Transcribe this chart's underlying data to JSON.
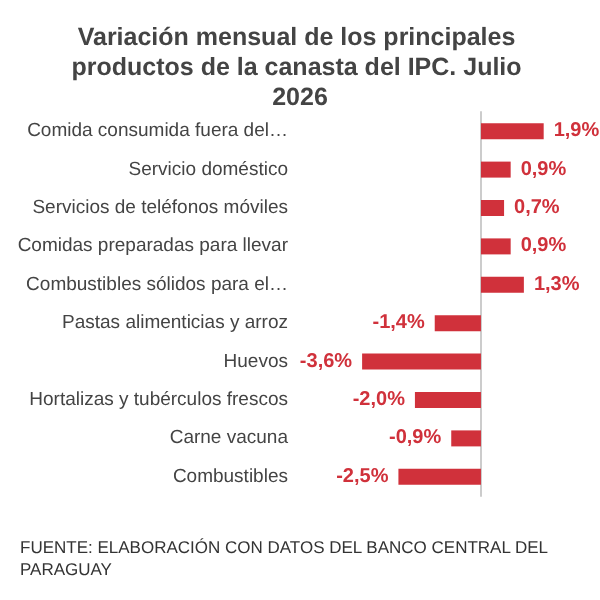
{
  "chart_data": {
    "type": "bar",
    "orientation": "horizontal",
    "title": "Variación mensual de los principales productos de la canasta del IPC. Julio 2026",
    "categories": [
      "Comida consumida fuera del…",
      "Servicio doméstico",
      "Servicios de teléfonos móviles",
      "Comidas preparadas para llevar",
      "Combustibles sólidos para el…",
      "Pastas alimenticias y arroz",
      "Huevos",
      "Hortalizas y tubérculos frescos",
      "Carne vacuna",
      "Combustibles"
    ],
    "values": [
      1.9,
      0.9,
      0.7,
      0.9,
      1.3,
      -1.4,
      -3.6,
      -2.0,
      -0.9,
      -2.5
    ],
    "value_labels": [
      "1,9%",
      "0,9%",
      "0,7%",
      "0,9%",
      "1,3%",
      "-1,4%",
      "-3,6%",
      "-2,0%",
      "-0,9%",
      "-2,5%"
    ],
    "color": "#d0313b",
    "annotations": [
      "FUENTE: ELABORACIÓN CON DATOS DEL BANCO CENTRAL DEL PARAGUAY"
    ]
  }
}
